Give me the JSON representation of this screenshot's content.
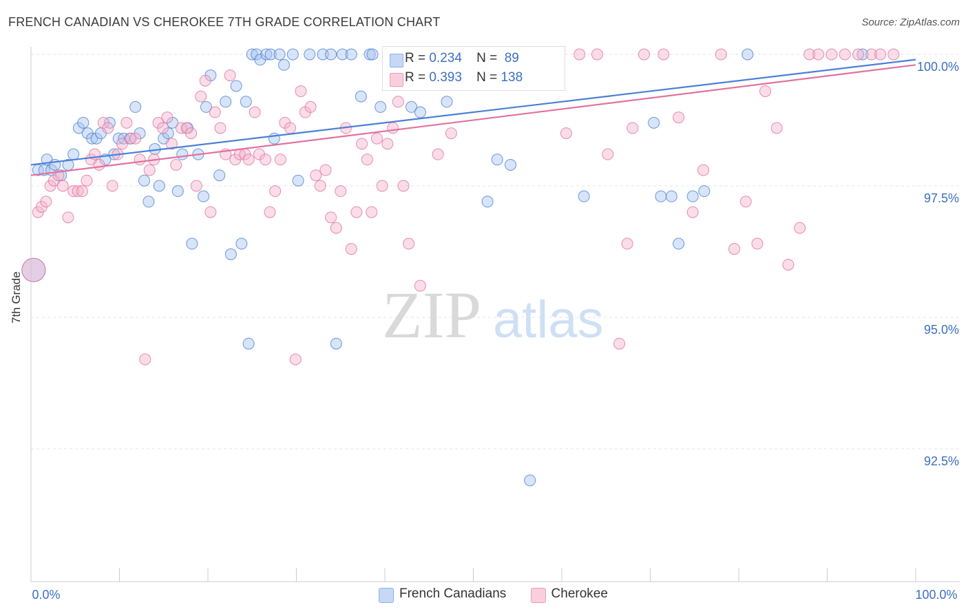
{
  "title": "FRENCH CANADIAN VS CHEROKEE 7TH GRADE CORRELATION CHART",
  "source": "Source: ZipAtlas.com",
  "watermark": {
    "zip": "ZIP",
    "atlas": "atlas"
  },
  "legend": {
    "rows": [
      {
        "r_label": "R =",
        "r_value": "0.234",
        "n_label": "N =",
        "n_value": "89",
        "color": "#8db0e8",
        "fill": "#c7d8f5"
      },
      {
        "r_label": "R =",
        "r_value": "0.393",
        "n_label": "N =",
        "n_value": "138",
        "color": "#ef9ab8",
        "fill": "#f9cfdd"
      }
    ]
  },
  "bottom_legend": [
    {
      "label": "French Canadians",
      "color": "#8db0e8",
      "fill": "#c7d8f5"
    },
    {
      "label": "Cherokee",
      "color": "#ef9ab8",
      "fill": "#f9cfdd"
    }
  ],
  "chart_data": {
    "type": "scatter",
    "title": "FRENCH CANADIAN VS CHEROKEE 7TH GRADE CORRELATION CHART",
    "xlabel": "",
    "ylabel": "7th Grade",
    "xlim": [
      0,
      100
    ],
    "ylim": [
      90.0,
      100.2
    ],
    "x_tick_labels": [
      "0.0%",
      "100.0%"
    ],
    "y_ticks": [
      92.5,
      95.0,
      97.5,
      100.0
    ],
    "y_tick_labels": [
      "92.5%",
      "95.0%",
      "97.5%",
      "100.0%"
    ],
    "grid": true,
    "series": [
      {
        "name": "French Canadians",
        "color": "#4a7fd6",
        "fill": "#a9c4ef",
        "trend": [
          [
            0,
            97.9
          ],
          [
            100,
            99.9
          ]
        ],
        "points": [
          [
            0.3,
            95.9
          ],
          [
            0.8,
            97.8
          ],
          [
            1.5,
            97.8
          ],
          [
            1.8,
            98.0
          ],
          [
            2.3,
            97.8
          ],
          [
            2.7,
            97.9
          ],
          [
            3.4,
            97.7
          ],
          [
            4.2,
            97.9
          ],
          [
            4.8,
            98.1
          ],
          [
            5.4,
            98.6
          ],
          [
            5.9,
            98.7
          ],
          [
            6.4,
            98.5
          ],
          [
            6.9,
            98.4
          ],
          [
            7.4,
            98.4
          ],
          [
            7.9,
            98.5
          ],
          [
            8.4,
            98.0
          ],
          [
            8.9,
            98.7
          ],
          [
            9.4,
            98.1
          ],
          [
            9.9,
            98.4
          ],
          [
            10.5,
            98.4
          ],
          [
            11.2,
            98.4
          ],
          [
            11.8,
            99.0
          ],
          [
            12.3,
            98.5
          ],
          [
            12.8,
            97.6
          ],
          [
            13.3,
            97.2
          ],
          [
            14.0,
            98.2
          ],
          [
            14.5,
            97.5
          ],
          [
            15.0,
            98.4
          ],
          [
            15.5,
            98.5
          ],
          [
            16.0,
            98.7
          ],
          [
            16.6,
            97.4
          ],
          [
            17.1,
            98.1
          ],
          [
            17.7,
            98.6
          ],
          [
            18.2,
            96.4
          ],
          [
            18.9,
            98.1
          ],
          [
            19.5,
            97.3
          ],
          [
            19.8,
            99.0
          ],
          [
            20.3,
            99.6
          ],
          [
            21.3,
            97.7
          ],
          [
            22.0,
            99.1
          ],
          [
            22.6,
            96.2
          ],
          [
            23.2,
            99.4
          ],
          [
            23.8,
            96.4
          ],
          [
            24.3,
            99.1
          ],
          [
            24.6,
            94.5
          ],
          [
            25.0,
            100.0
          ],
          [
            25.5,
            100.0
          ],
          [
            25.9,
            99.9
          ],
          [
            26.6,
            100.0
          ],
          [
            27.1,
            100.0
          ],
          [
            27.5,
            98.4
          ],
          [
            28.1,
            100.0
          ],
          [
            28.6,
            99.8
          ],
          [
            29.6,
            100.0
          ],
          [
            30.2,
            97.6
          ],
          [
            31.5,
            100.0
          ],
          [
            33.0,
            100.0
          ],
          [
            33.9,
            100.0
          ],
          [
            34.5,
            94.5
          ],
          [
            35.2,
            100.0
          ],
          [
            36.2,
            100.0
          ],
          [
            37.3,
            99.2
          ],
          [
            38.3,
            100.0
          ],
          [
            38.6,
            100.0
          ],
          [
            39.5,
            99.0
          ],
          [
            40.5,
            100.0
          ],
          [
            41.1,
            100.0
          ],
          [
            42.5,
            100.0
          ],
          [
            43.0,
            99.0
          ],
          [
            44.0,
            98.9
          ],
          [
            44.5,
            100.0
          ],
          [
            45.1,
            100.0
          ],
          [
            46.5,
            100.0
          ],
          [
            47.0,
            99.1
          ],
          [
            47.9,
            100.0
          ],
          [
            49.0,
            100.0
          ],
          [
            50.5,
            100.0
          ],
          [
            51.6,
            97.2
          ],
          [
            52.7,
            98.0
          ],
          [
            53.5,
            100.0
          ],
          [
            54.2,
            97.9
          ],
          [
            56.4,
            91.9
          ],
          [
            62.5,
            97.3
          ],
          [
            70.4,
            98.7
          ],
          [
            71.2,
            97.3
          ],
          [
            72.4,
            97.3
          ],
          [
            73.2,
            96.4
          ],
          [
            74.8,
            97.3
          ],
          [
            76.1,
            97.4
          ],
          [
            81.0,
            100.0
          ],
          [
            94.0,
            100.0
          ]
        ]
      },
      {
        "name": "Cherokee",
        "color": "#e0729c",
        "fill": "#f5b4cb",
        "trend": [
          [
            0,
            97.7
          ],
          [
            100,
            99.8
          ]
        ],
        "points": [
          [
            0.3,
            95.9
          ],
          [
            0.8,
            97.0
          ],
          [
            1.2,
            97.1
          ],
          [
            1.7,
            97.2
          ],
          [
            2.2,
            97.5
          ],
          [
            2.6,
            97.6
          ],
          [
            3.1,
            97.7
          ],
          [
            3.6,
            97.5
          ],
          [
            4.2,
            96.9
          ],
          [
            4.8,
            97.4
          ],
          [
            5.3,
            97.4
          ],
          [
            5.8,
            97.4
          ],
          [
            6.3,
            97.6
          ],
          [
            6.8,
            98.0
          ],
          [
            7.2,
            98.1
          ],
          [
            7.7,
            97.9
          ],
          [
            8.2,
            98.7
          ],
          [
            8.7,
            98.6
          ],
          [
            9.2,
            97.5
          ],
          [
            9.8,
            98.1
          ],
          [
            10.3,
            98.3
          ],
          [
            10.8,
            98.7
          ],
          [
            11.3,
            98.4
          ],
          [
            11.8,
            98.4
          ],
          [
            12.3,
            98.0
          ],
          [
            12.9,
            94.2
          ],
          [
            13.4,
            97.8
          ],
          [
            13.9,
            98.0
          ],
          [
            14.4,
            98.7
          ],
          [
            14.9,
            98.6
          ],
          [
            15.4,
            98.8
          ],
          [
            15.9,
            98.3
          ],
          [
            16.4,
            97.9
          ],
          [
            17.0,
            98.6
          ],
          [
            17.6,
            98.6
          ],
          [
            18.1,
            98.5
          ],
          [
            18.7,
            97.5
          ],
          [
            19.2,
            99.2
          ],
          [
            19.7,
            99.5
          ],
          [
            20.3,
            97.0
          ],
          [
            20.8,
            98.9
          ],
          [
            21.4,
            98.6
          ],
          [
            22.0,
            98.1
          ],
          [
            22.5,
            99.6
          ],
          [
            23.1,
            98.0
          ],
          [
            23.6,
            98.1
          ],
          [
            24.2,
            98.1
          ],
          [
            24.6,
            98.0
          ],
          [
            25.3,
            98.9
          ],
          [
            25.8,
            98.1
          ],
          [
            26.5,
            98.0
          ],
          [
            27.0,
            97.0
          ],
          [
            27.6,
            97.4
          ],
          [
            28.2,
            98.0
          ],
          [
            28.7,
            98.7
          ],
          [
            29.3,
            98.6
          ],
          [
            29.9,
            94.2
          ],
          [
            30.5,
            99.3
          ],
          [
            31.0,
            98.9
          ],
          [
            31.6,
            99.0
          ],
          [
            32.2,
            97.7
          ],
          [
            32.7,
            97.5
          ],
          [
            33.3,
            97.8
          ],
          [
            33.9,
            96.9
          ],
          [
            34.5,
            96.7
          ],
          [
            35.0,
            97.4
          ],
          [
            35.6,
            98.6
          ],
          [
            36.2,
            96.3
          ],
          [
            36.8,
            97.0
          ],
          [
            37.4,
            98.3
          ],
          [
            38.0,
            98.0
          ],
          [
            38.5,
            97.0
          ],
          [
            39.1,
            98.4
          ],
          [
            39.7,
            97.5
          ],
          [
            40.3,
            98.3
          ],
          [
            40.9,
            98.6
          ],
          [
            41.5,
            99.1
          ],
          [
            42.1,
            97.5
          ],
          [
            42.7,
            96.4
          ],
          [
            43.3,
            100.0
          ],
          [
            44.0,
            95.6
          ],
          [
            46.0,
            98.1
          ],
          [
            47.5,
            98.5
          ],
          [
            50.0,
            100.0
          ],
          [
            51.0,
            100.0
          ],
          [
            52.0,
            100.0
          ],
          [
            53.0,
            100.0
          ],
          [
            54.5,
            100.0
          ],
          [
            56.5,
            100.0
          ],
          [
            57.4,
            100.0
          ],
          [
            58.5,
            100.0
          ],
          [
            59.6,
            100.0
          ],
          [
            60.5,
            98.5
          ],
          [
            62.0,
            100.0
          ],
          [
            64.0,
            100.0
          ],
          [
            65.2,
            98.1
          ],
          [
            66.5,
            94.5
          ],
          [
            67.4,
            96.4
          ],
          [
            68.0,
            98.6
          ],
          [
            69.3,
            100.0
          ],
          [
            71.5,
            100.0
          ],
          [
            73.2,
            98.8
          ],
          [
            74.8,
            97.0
          ],
          [
            76.0,
            97.8
          ],
          [
            78.0,
            100.0
          ],
          [
            79.5,
            96.3
          ],
          [
            80.8,
            97.2
          ],
          [
            82.1,
            96.4
          ],
          [
            83.0,
            99.3
          ],
          [
            84.3,
            98.6
          ],
          [
            85.6,
            96.0
          ],
          [
            86.9,
            96.7
          ],
          [
            88.0,
            100.0
          ],
          [
            89.0,
            100.0
          ],
          [
            90.5,
            100.0
          ],
          [
            92.0,
            100.0
          ],
          [
            93.5,
            100.0
          ],
          [
            95.0,
            100.0
          ],
          [
            96.0,
            100.0
          ],
          [
            97.5,
            100.0
          ]
        ]
      }
    ]
  }
}
